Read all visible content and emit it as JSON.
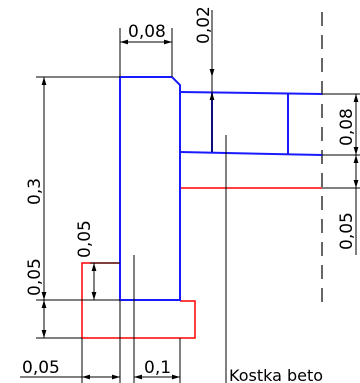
{
  "dimensions": {
    "top_width": "0,08",
    "top_chamfer": "0,02",
    "total_height": "0,3",
    "left_step_height": "0,05",
    "base_height": "0,05",
    "bottom_left": "0,05",
    "bottom_mid": "0,1",
    "right_upper": "0,08",
    "right_lower": "0,05"
  },
  "labels": {
    "callout": "Kostka beto"
  },
  "colors": {
    "curb_outline": "#1a1aff",
    "foundation_outline": "#ff0000",
    "dimension_lines": "#000000"
  }
}
